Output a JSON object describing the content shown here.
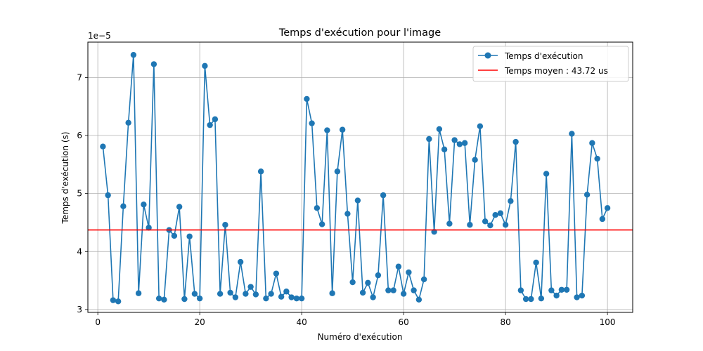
{
  "chart_data": {
    "type": "line",
    "title": "Temps d'exécution pour l'image",
    "xlabel": "Numéro d'exécution",
    "ylabel": "Temps d'exécution (s)",
    "y_offset_label": "1e−5",
    "xlim": [
      -1.95,
      104.95
    ],
    "ylim": [
      2.95,
      7.61
    ],
    "x_ticks": [
      0,
      20,
      40,
      60,
      80,
      100
    ],
    "x_tick_labels": [
      "0",
      "20",
      "40",
      "60",
      "80",
      "100"
    ],
    "y_ticks": [
      3,
      4,
      5,
      6,
      7
    ],
    "y_tick_labels": [
      "3",
      "4",
      "5",
      "6",
      "7"
    ],
    "grid": true,
    "legend_position": "top-right",
    "colors": {
      "series": "#1f77b4",
      "mean": "#ff0000",
      "grid": "#b0b0b0"
    },
    "series": [
      {
        "name": "Temps d'exécution",
        "x": [
          1,
          2,
          3,
          4,
          5,
          6,
          7,
          8,
          9,
          10,
          11,
          12,
          13,
          14,
          15,
          16,
          17,
          18,
          19,
          20,
          21,
          22,
          23,
          24,
          25,
          26,
          27,
          28,
          29,
          30,
          31,
          32,
          33,
          34,
          35,
          36,
          37,
          38,
          39,
          40,
          41,
          42,
          43,
          44,
          45,
          46,
          47,
          48,
          49,
          50,
          51,
          52,
          53,
          54,
          55,
          56,
          57,
          58,
          59,
          60,
          61,
          62,
          63,
          64,
          65,
          66,
          67,
          68,
          69,
          70,
          71,
          72,
          73,
          74,
          75,
          76,
          77,
          78,
          79,
          80,
          81,
          82,
          83,
          84,
          85,
          86,
          87,
          88,
          89,
          90,
          91,
          92,
          93,
          94,
          95,
          96,
          97,
          98,
          99,
          100
        ],
        "y": [
          5.81,
          4.97,
          3.16,
          3.14,
          4.78,
          6.22,
          7.39,
          3.28,
          4.81,
          4.41,
          7.23,
          3.19,
          3.17,
          4.37,
          4.27,
          4.77,
          3.18,
          4.26,
          3.27,
          3.19,
          7.2,
          6.18,
          6.28,
          3.27,
          4.46,
          3.29,
          3.21,
          3.82,
          3.27,
          3.39,
          3.26,
          5.38,
          3.19,
          3.27,
          3.62,
          3.22,
          3.31,
          3.21,
          3.19,
          3.19,
          6.63,
          6.21,
          4.75,
          4.47,
          6.09,
          3.28,
          5.38,
          6.1,
          4.65,
          3.47,
          4.88,
          3.29,
          3.46,
          3.21,
          3.59,
          4.97,
          3.33,
          3.33,
          3.74,
          3.27,
          3.64,
          3.33,
          3.17,
          3.52,
          5.94,
          4.34,
          6.11,
          5.76,
          4.48,
          5.92,
          5.85,
          5.87,
          4.46,
          5.58,
          6.16,
          4.52,
          4.45,
          4.63,
          4.66,
          4.46,
          4.87,
          5.89,
          3.33,
          3.18,
          3.18,
          3.81,
          3.19,
          5.34,
          3.33,
          3.24,
          3.34,
          3.34,
          6.03,
          3.21,
          3.24,
          4.98,
          5.87,
          5.6,
          4.56,
          4.75
        ]
      },
      {
        "name": "Temps moyen : 43.72 us",
        "type": "hline",
        "y": 4.372
      }
    ]
  }
}
